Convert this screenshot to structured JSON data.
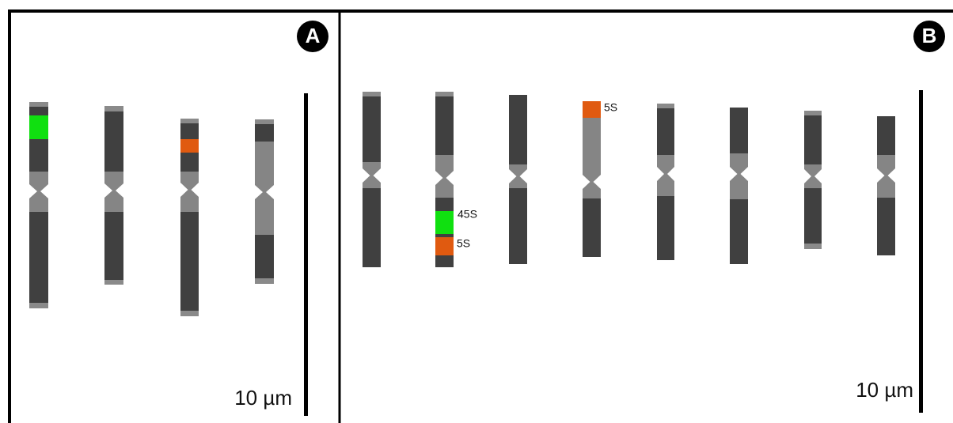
{
  "panels": [
    {
      "label": "A",
      "scale_label": "10 µm"
    },
    {
      "label": "B",
      "scale_label": "10 µm",
      "annotations": [
        "45S",
        "5S",
        "5S"
      ]
    }
  ]
}
